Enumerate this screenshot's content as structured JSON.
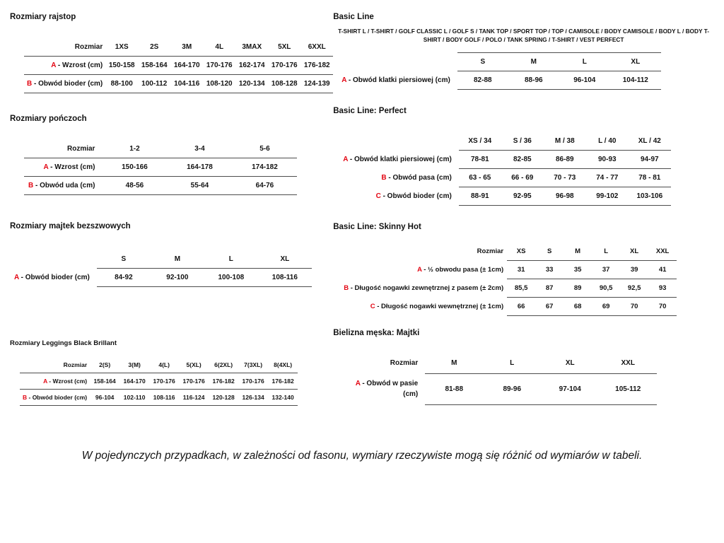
{
  "accent_color": "#e30613",
  "tables": [
    {
      "name": "rozmiary-rajstop",
      "title": "Rozmiary rajstop",
      "header_label": "Rozmiar",
      "sizes": [
        "1XS",
        "2S",
        "3M",
        "4L",
        "3MAX",
        "5XL",
        "6XXL"
      ],
      "rows": [
        {
          "prefix": "A",
          "label": "Wzrost (cm)",
          "values": [
            "150-158",
            "158-164",
            "164-170",
            "170-176",
            "162-174",
            "170-176",
            "176-182"
          ]
        },
        {
          "prefix": "B",
          "label": "Obwód bioder (cm)",
          "values": [
            "88-100",
            "100-112",
            "104-116",
            "108-120",
            "120-134",
            "108-128",
            "124-139"
          ]
        }
      ]
    },
    {
      "name": "rozmiary-ponczoch",
      "title": "Rozmiary pończoch",
      "header_label": "Rozmiar",
      "sizes": [
        "1-2",
        "3-4",
        "5-6"
      ],
      "rows": [
        {
          "prefix": "A",
          "label": "Wzrost (cm)",
          "values": [
            "150-166",
            "164-178",
            "174-182"
          ]
        },
        {
          "prefix": "B",
          "label": "Obwód uda (cm)",
          "values": [
            "48-56",
            "55-64",
            "64-76"
          ]
        }
      ]
    },
    {
      "name": "rozmiary-majtek-bezszwowych",
      "title": "Rozmiary majtek bezszwowych",
      "header_label": "",
      "sizes": [
        "S",
        "M",
        "L",
        "XL"
      ],
      "rows": [
        {
          "prefix": "A",
          "label": "Obwód bioder (cm)",
          "values": [
            "84-92",
            "92-100",
            "100-108",
            "108-116"
          ]
        }
      ]
    },
    {
      "name": "rozmiary-leggings-black-brillant",
      "title": "Rozmiary Leggings Black Brillant",
      "header_label": "Rozmiar",
      "sizes": [
        "2(S)",
        "3(M)",
        "4(L)",
        "5(XL)",
        "6(2XL)",
        "7(3XL)",
        "8(4XL)"
      ],
      "rows": [
        {
          "prefix": "A",
          "label": "Wzrost (cm)",
          "values": [
            "158-164",
            "164-170",
            "170-176",
            "170-176",
            "176-182",
            "170-176",
            "176-182"
          ]
        },
        {
          "prefix": "B",
          "label": "Obwód bioder (cm)",
          "values": [
            "96-104",
            "102-110",
            "108-116",
            "116-124",
            "120-128",
            "126-134",
            "132-140"
          ]
        }
      ]
    },
    {
      "name": "basic-line",
      "title": "Basic Line",
      "subtitle": "T-SHIRT L / T-SHIRT / GOLF CLASSIC L / GOLF S / TANK TOP / SPORT TOP / TOP / CAMISOLE / BODY CAMISOLE / BODY L / BODY T-SHIRT / BODY GOLF / POLO / TANK SPRING / T-SHIRT / VEST PERFECT",
      "header_label": "",
      "sizes": [
        "S",
        "M",
        "L",
        "XL"
      ],
      "rows": [
        {
          "prefix": "A",
          "label": "Obwód klatki piersiowej (cm)",
          "values": [
            "82-88",
            "88-96",
            "96-104",
            "104-112"
          ]
        }
      ]
    },
    {
      "name": "basic-line-perfect",
      "title": "Basic Line: Perfect",
      "header_label": "",
      "sizes": [
        "XS / 34",
        "S / 36",
        "M / 38",
        "L / 40",
        "XL / 42"
      ],
      "rows": [
        {
          "prefix": "A",
          "label": "Obwód klatki piersiowej (cm)",
          "values": [
            "78-81",
            "82-85",
            "86-89",
            "90-93",
            "94-97"
          ]
        },
        {
          "prefix": "B",
          "label": "Obwód pasa (cm)",
          "values": [
            "63 - 65",
            "66 - 69",
            "70 - 73",
            "74 - 77",
            "78 - 81"
          ]
        },
        {
          "prefix": "C",
          "label": "Obwód bioder (cm)",
          "values": [
            "88-91",
            "92-95",
            "96-98",
            "99-102",
            "103-106"
          ]
        }
      ]
    },
    {
      "name": "basic-line-skinny-hot",
      "title": "Basic Line: Skinny Hot",
      "header_label": "Rozmiar",
      "sizes": [
        "XS",
        "S",
        "M",
        "L",
        "XL",
        "XXL"
      ],
      "rows": [
        {
          "prefix": "A",
          "label": "½ obwodu pasa (± 1cm)",
          "values": [
            "31",
            "33",
            "35",
            "37",
            "39",
            "41"
          ]
        },
        {
          "prefix": "B",
          "label": "Długość nogawki zewnętrznej z pasem (± 2cm)",
          "values": [
            "85,5",
            "87",
            "89",
            "90,5",
            "92,5",
            "93"
          ]
        },
        {
          "prefix": "C",
          "label": "Długość nogawki wewnętrznej (± 1cm)",
          "values": [
            "66",
            "67",
            "68",
            "69",
            "70",
            "70"
          ]
        }
      ]
    },
    {
      "name": "bielizna-meska-majtki",
      "title": "Bielizna męska: Majtki",
      "header_label": "Rozmiar",
      "sizes": [
        "M",
        "L",
        "XL",
        "XXL"
      ],
      "rows": [
        {
          "prefix": "A",
          "label": "Obwód w pasie (cm)",
          "values": [
            "81-88",
            "89-96",
            "97-104",
            "105-112"
          ]
        }
      ]
    }
  ],
  "footer_note": "W pojedynczych przypadkach, w zależności od fasonu, wymiary rzeczywiste mogą się różnić od wymiarów w tabeli."
}
